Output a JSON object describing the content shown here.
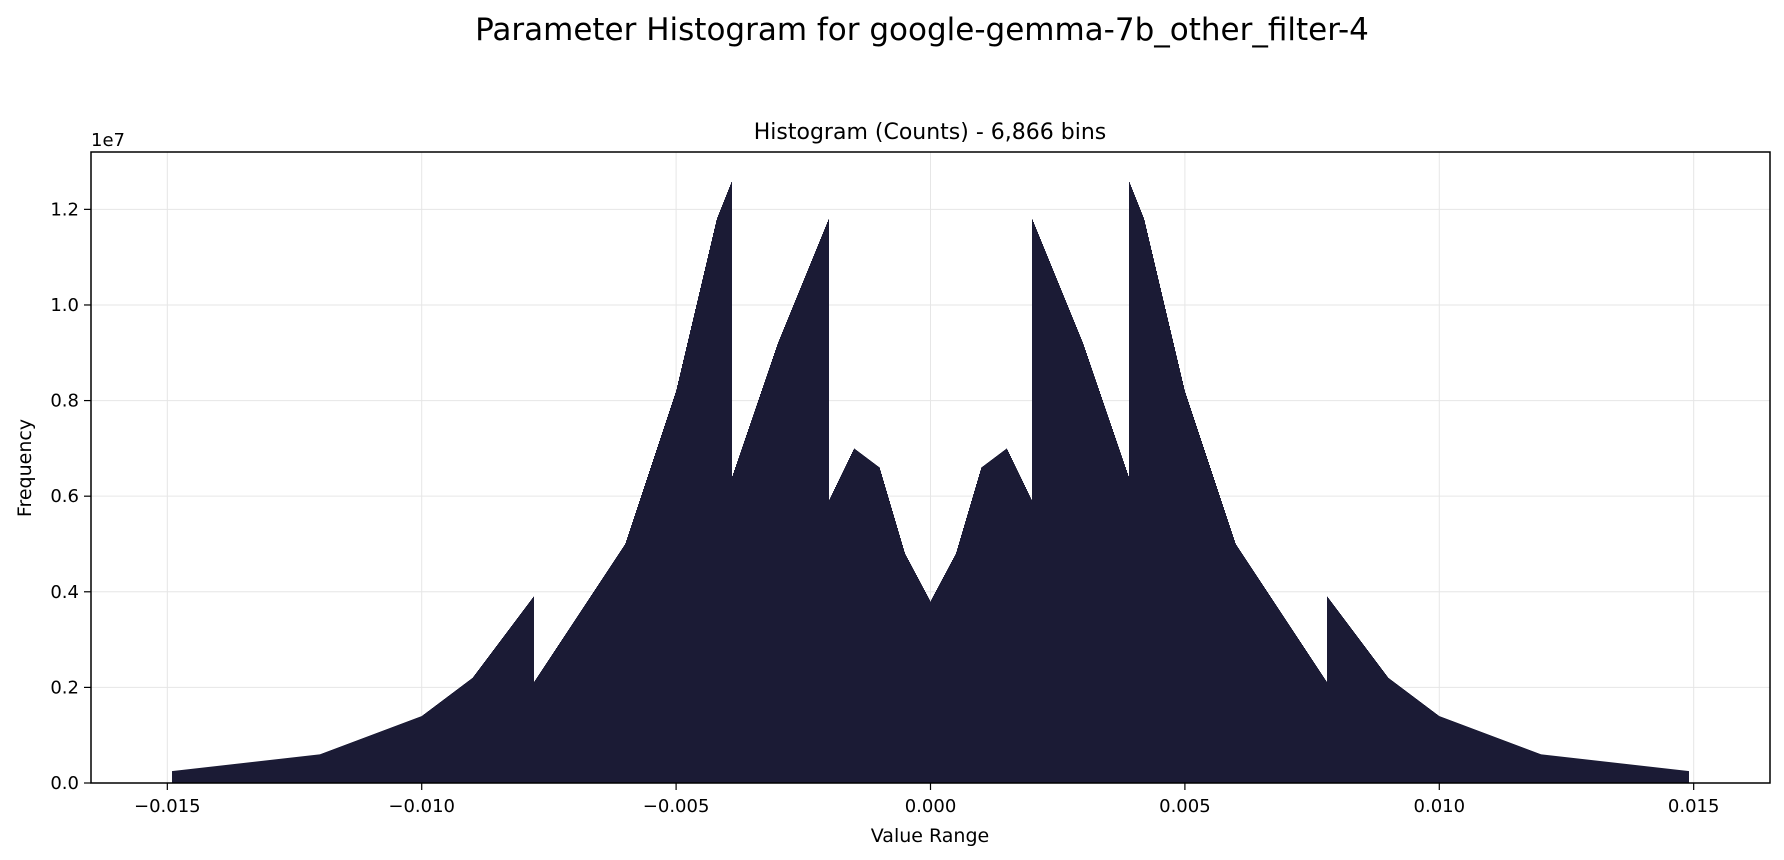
{
  "figure": {
    "suptitle": "Parameter Histogram for google-gemma-7b_other_filter-4"
  },
  "chart_data": {
    "type": "bar",
    "title": "Histogram (Counts) - 6,866 bins",
    "xlabel": "Value Range",
    "ylabel": "Frequency",
    "y_multiplier_label": "1e7",
    "xlim": [
      -0.0165,
      0.0165
    ],
    "ylim": [
      0,
      1.32
    ],
    "xticks": [
      -0.015,
      -0.01,
      -0.005,
      0.0,
      0.005,
      0.01,
      0.015
    ],
    "xtick_labels": [
      "−0.015",
      "−0.010",
      "−0.005",
      "0.000",
      "0.005",
      "0.010",
      "0.015"
    ],
    "yticks": [
      0.0,
      0.2,
      0.4,
      0.6,
      0.8,
      1.0,
      1.2
    ],
    "ytick_labels": [
      "0.0",
      "0.2",
      "0.4",
      "0.6",
      "0.8",
      "1.0",
      "1.2"
    ],
    "grid": true,
    "bar_color": "#1b1b35",
    "envelope_x": [
      0.0,
      0.0005,
      0.001,
      0.0015,
      0.002,
      0.002,
      0.003,
      0.0039,
      0.0039,
      0.0042,
      0.005,
      0.006,
      0.0078,
      0.0078,
      0.009,
      0.01,
      0.012,
      0.0149
    ],
    "envelope_y": [
      0.38,
      0.48,
      0.66,
      0.7,
      0.59,
      1.18,
      0.92,
      0.64,
      1.26,
      1.18,
      0.82,
      0.5,
      0.21,
      0.39,
      0.22,
      0.14,
      0.06,
      0.025
    ]
  }
}
